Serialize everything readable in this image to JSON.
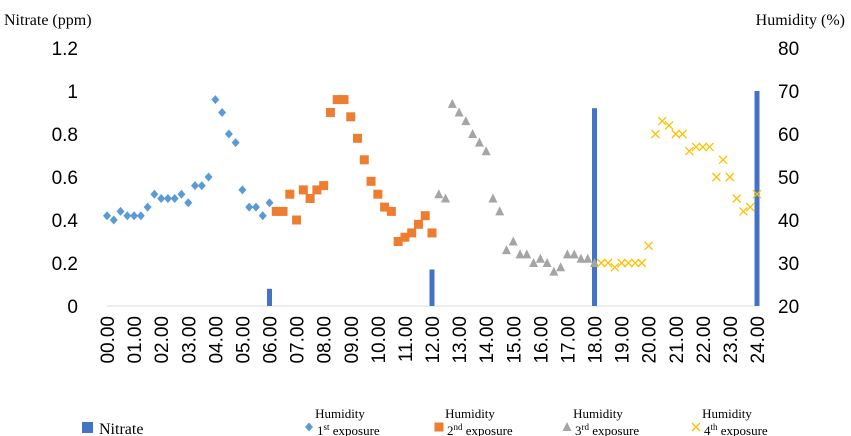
{
  "chart_data": {
    "type": "bar+scatter",
    "left_axis_title": "Nitrate (ppm)",
    "right_axis_title": "Humidity (%)",
    "left_ylim": [
      0,
      1.2
    ],
    "left_ticks": [
      "0",
      "0.2",
      "0.4",
      "0.6",
      "0.8",
      "1",
      "1.2"
    ],
    "right_ylim": [
      20,
      80
    ],
    "right_ticks": [
      "20",
      "30",
      "40",
      "50",
      "60",
      "70",
      "80"
    ],
    "x_tick_labels": [
      "00.00",
      "01.00",
      "02.00",
      "03.00",
      "04.00",
      "05.00",
      "06.00",
      "07.00",
      "08.00",
      "09.00",
      "10.00",
      "11.00",
      "12.00",
      "13.00",
      "14.00",
      "15.00",
      "16.00",
      "17.00",
      "18.00",
      "19.00",
      "20.00",
      "21.00",
      "22.00",
      "23.00",
      "24.00"
    ],
    "nitrate": {
      "name": "Nitrate",
      "color": "#4472C4",
      "x": [
        6,
        12,
        18,
        24
      ],
      "values": [
        0.08,
        0.17,
        0.92,
        1.0
      ]
    },
    "humidity_series": [
      {
        "name_top": "Humidity",
        "name_base": "1",
        "name_sup": "st",
        "name_rest": " exposure",
        "color": "#5B9BD5",
        "marker": "diamond",
        "x": [
          0.0,
          0.25,
          0.5,
          0.75,
          1.0,
          1.25,
          1.5,
          1.75,
          2.0,
          2.25,
          2.5,
          2.75,
          3.0,
          3.25,
          3.5,
          3.75,
          4.0,
          4.25,
          4.5,
          4.75,
          5.0,
          5.25,
          5.5,
          5.75,
          6.0
        ],
        "values": [
          41,
          40,
          42,
          41,
          41,
          41,
          43,
          46,
          45,
          45,
          45,
          46,
          44,
          48,
          48,
          50,
          68,
          65,
          60,
          58,
          47,
          43,
          43,
          41,
          44
        ]
      },
      {
        "name_top": "Humidity",
        "name_base": "2",
        "name_sup": "nd",
        "name_rest": " exposure",
        "color": "#ED7D31",
        "marker": "square",
        "x": [
          6.25,
          6.5,
          6.75,
          7.0,
          7.25,
          7.5,
          7.75,
          8.0,
          8.25,
          8.5,
          8.75,
          9.0,
          9.25,
          9.5,
          9.75,
          10.0,
          10.25,
          10.5,
          10.75,
          11.0,
          11.25,
          11.5,
          11.75,
          12.0
        ],
        "values": [
          42,
          42,
          46,
          40,
          47,
          45,
          47,
          48,
          65,
          68,
          68,
          64,
          59,
          54,
          49,
          46,
          43,
          42,
          35,
          36,
          37,
          39,
          41,
          37
        ]
      },
      {
        "name_top": "Humidity",
        "name_base": "3",
        "name_sup": "rd",
        "name_rest": " exposure",
        "color": "#A5A5A5",
        "marker": "triangle",
        "x": [
          12.25,
          12.5,
          12.75,
          13.0,
          13.25,
          13.5,
          13.75,
          14.0,
          14.25,
          14.5,
          14.75,
          15.0,
          15.25,
          15.5,
          15.75,
          16.0,
          16.25,
          16.5,
          16.75,
          17.0,
          17.25,
          17.5,
          17.75,
          18.0
        ],
        "values": [
          46,
          45,
          67,
          65,
          63,
          60,
          58,
          56,
          45,
          42,
          33,
          35,
          32,
          32,
          30,
          31,
          30,
          28,
          29,
          32,
          32,
          31,
          31,
          30
        ]
      },
      {
        "name_top": "Humidity",
        "name_base": "4",
        "name_sup": "th",
        "name_rest": " exposure",
        "color": "#FFC000",
        "marker": "x",
        "x": [
          18.25,
          18.5,
          18.75,
          19.0,
          19.25,
          19.5,
          19.75,
          20.0,
          20.25,
          20.5,
          20.75,
          21.0,
          21.25,
          21.5,
          21.75,
          22.0,
          22.25,
          22.5,
          22.75,
          23.0,
          23.25,
          23.5,
          23.75,
          24.0
        ],
        "values": [
          30,
          30,
          29,
          30,
          30,
          30,
          30,
          34,
          60,
          63,
          62,
          60,
          60,
          56,
          57,
          57,
          57,
          50,
          54,
          50,
          45,
          42,
          43,
          46
        ]
      }
    ]
  }
}
